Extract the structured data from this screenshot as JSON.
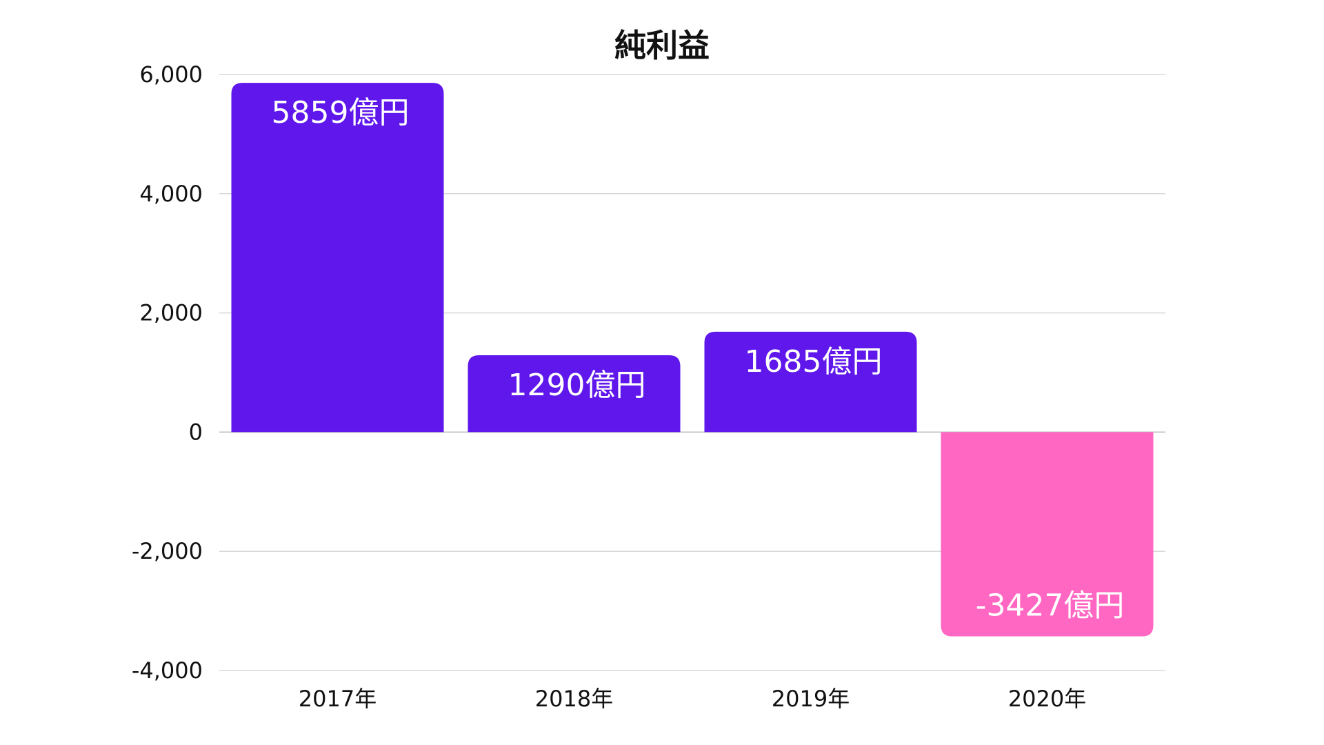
{
  "chart_data": {
    "type": "bar",
    "title": "純利益",
    "xlabel": "",
    "ylabel": "",
    "categories": [
      "2017年",
      "2018年",
      "2019年",
      "2020年"
    ],
    "values": [
      5859,
      1290,
      1685,
      -3427
    ],
    "data_labels": [
      "5859億円",
      "1290億円",
      "1685億円",
      "-3427億円"
    ],
    "ylim": [
      -4000,
      6000
    ],
    "yticks": [
      6000,
      4000,
      2000,
      0,
      -2000,
      -4000
    ],
    "ytick_labels": [
      "6,000",
      "4,000",
      "2,000",
      "0",
      "-2,000",
      "-4,000"
    ],
    "grid": true,
    "legend": "none",
    "colors": {
      "positive": "#5F17EC",
      "negative": "#FF67C2",
      "grid": "#D9D9D9",
      "axis_text": "#111111"
    }
  }
}
